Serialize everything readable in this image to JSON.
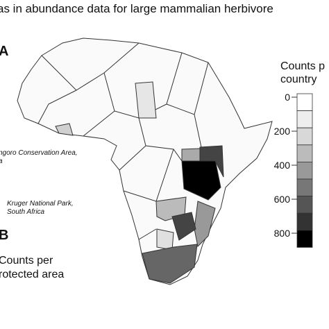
{
  "title": "as in abundance data for large mammalian herbivore",
  "panel_a": "A",
  "panel_b": "B",
  "legend": {
    "title": [
      "Counts p",
      "country"
    ],
    "ticks": [
      0,
      200,
      400,
      600,
      800
    ]
  },
  "site_labels": [
    [
      "ngoro Conservation Area,",
      "a"
    ],
    [
      "Kruger National Park,",
      "South Africa"
    ]
  ],
  "panel_b_label": [
    "Counts per",
    "rotected area"
  ]
}
